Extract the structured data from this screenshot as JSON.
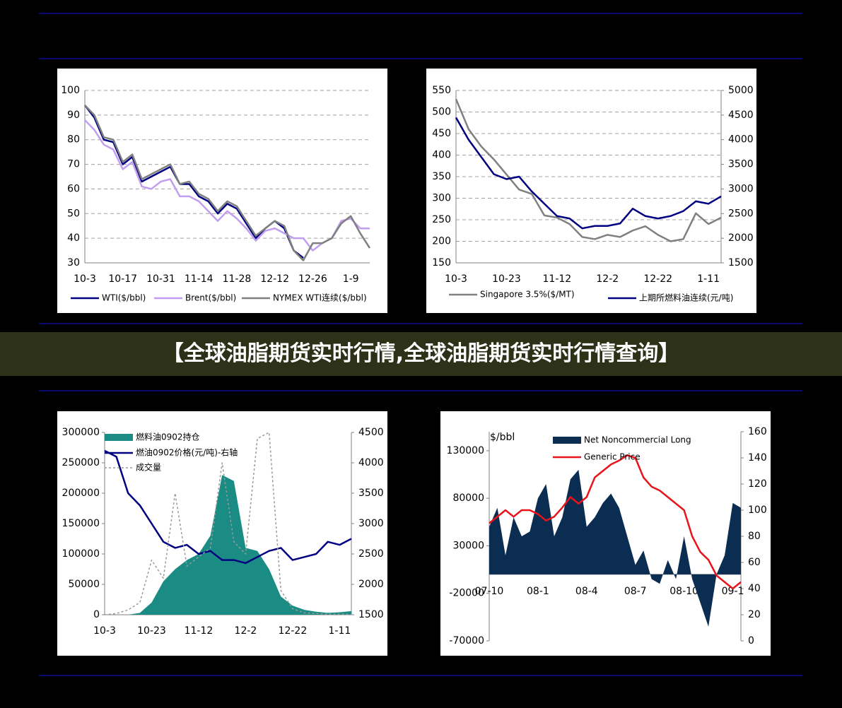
{
  "banner": "【全球油脂期货实时行情,全球油脂期货实时行情查询】",
  "chart_data": [
    {
      "type": "line",
      "legend": "bottom",
      "grid": true,
      "categories": [
        "10-3",
        null,
        null,
        null,
        "10-17",
        null,
        null,
        null,
        "10-31",
        null,
        null,
        null,
        "11-14",
        null,
        null,
        null,
        "11-28",
        null,
        null,
        null,
        "12-12",
        null,
        null,
        null,
        "12-26",
        null,
        null,
        null,
        "1-9",
        null,
        null
      ],
      "ylim": [
        30,
        100
      ],
      "yticks": [
        30,
        40,
        50,
        60,
        70,
        80,
        90,
        100
      ],
      "series": [
        {
          "name": "WTI($/bbl)",
          "color": "#000080",
          "kind": "line",
          "values": [
            94,
            89,
            80,
            79,
            70,
            73,
            63,
            65,
            67,
            69,
            62,
            62,
            57,
            55,
            50,
            54,
            52,
            46,
            40,
            44,
            47,
            44,
            35,
            32,
            null,
            null,
            null,
            null,
            null,
            null,
            null
          ]
        },
        {
          "name": "Brent($/bbl)",
          "color": "#c39ef0",
          "kind": "line",
          "values": [
            88,
            84,
            78,
            76,
            68,
            71,
            61,
            60,
            63,
            64,
            57,
            57,
            55,
            51,
            47,
            51,
            48,
            44,
            39,
            43,
            44,
            42,
            40,
            40,
            35,
            38,
            40,
            47,
            48,
            44,
            44
          ]
        },
        {
          "name": "NYMEX WTI连续($/bbl)",
          "color": "#808080",
          "kind": "line",
          "values": [
            94,
            90,
            81,
            80,
            71,
            74,
            64,
            66,
            68,
            70,
            62,
            63,
            58,
            56,
            51,
            55,
            53,
            47,
            41,
            44,
            47,
            45,
            35,
            31,
            38,
            38,
            40,
            46,
            49,
            42,
            36
          ]
        }
      ]
    },
    {
      "type": "line",
      "legend": "bottom",
      "grid": true,
      "categories": [
        "10-3",
        null,
        null,
        null,
        "10-23",
        null,
        null,
        null,
        "11-12",
        null,
        null,
        null,
        "12-2",
        null,
        null,
        null,
        "12-22",
        null,
        null,
        null,
        "1-11",
        null
      ],
      "ylim": [
        150,
        550
      ],
      "yticks": [
        150,
        200,
        250,
        300,
        350,
        400,
        450,
        500,
        550
      ],
      "y2lim": [
        1500,
        5000
      ],
      "y2ticks": [
        1500,
        2000,
        2500,
        3000,
        3500,
        4000,
        4500,
        5000
      ],
      "series": [
        {
          "name": "Singapore 3.5%($/MT)",
          "color": "#808080",
          "kind": "line",
          "values": [
            530,
            460,
            420,
            390,
            355,
            320,
            310,
            260,
            255,
            240,
            210,
            205,
            215,
            210,
            225,
            235,
            215,
            200,
            205,
            265,
            240,
            255
          ]
        },
        {
          "name": "上期所燃料油连续(元/吨)",
          "color": "#000080",
          "kind": "line",
          "axis": "y2",
          "values": [
            4450,
            4000,
            3650,
            3300,
            3200,
            3250,
            2950,
            2700,
            2450,
            2400,
            2200,
            2250,
            2250,
            2300,
            2600,
            2450,
            2400,
            2450,
            2550,
            2750,
            2700,
            2850
          ]
        }
      ]
    },
    {
      "type": "combo",
      "legend": "upper left",
      "grid": false,
      "categories": [
        "10-3",
        null,
        null,
        null,
        "10-23",
        null,
        null,
        null,
        "11-12",
        null,
        null,
        null,
        "12-2",
        null,
        null,
        null,
        "12-22",
        null,
        null,
        null,
        "1-11",
        null
      ],
      "ylim": [
        0,
        300000
      ],
      "yticks": [
        0,
        50000,
        100000,
        150000,
        200000,
        250000,
        300000
      ],
      "y2lim": [
        1500,
        4500
      ],
      "y2ticks": [
        1500,
        2000,
        2500,
        3000,
        3500,
        4000,
        4500
      ],
      "series": [
        {
          "name": "燃料油0902持仓",
          "color": "#1a8c84",
          "kind": "area",
          "values": [
            0,
            0,
            0,
            3000,
            20000,
            55000,
            75000,
            90000,
            100000,
            130000,
            230000,
            220000,
            110000,
            105000,
            75000,
            30000,
            15000,
            8000,
            5000,
            3000,
            4000,
            6000
          ]
        },
        {
          "name": "燃油0902价格(元/吨)-右轴",
          "color": "#000080",
          "kind": "line",
          "axis": "y2",
          "values": [
            4200,
            4100,
            3500,
            3300,
            3000,
            2700,
            2600,
            2650,
            2500,
            2550,
            2400,
            2400,
            2350,
            2450,
            2550,
            2600,
            2400,
            2450,
            2500,
            2700,
            2650,
            2750
          ]
        },
        {
          "name": "成交量",
          "color": "#999999",
          "kind": "dashed",
          "values": [
            0,
            2000,
            8000,
            20000,
            90000,
            60000,
            200000,
            80000,
            95000,
            110000,
            250000,
            120000,
            100000,
            290000,
            300000,
            40000,
            10000,
            3000,
            2000,
            1000,
            1000,
            500
          ]
        }
      ]
    },
    {
      "type": "combo",
      "legend": "upper center",
      "grid": false,
      "y_label": "$/bbl",
      "categories": [
        "07-10",
        null,
        null,
        null,
        null,
        null,
        "08-1",
        null,
        null,
        null,
        null,
        null,
        "08-4",
        null,
        null,
        null,
        null,
        null,
        "08-7",
        null,
        null,
        null,
        null,
        null,
        "08-10",
        null,
        null,
        null,
        null,
        null,
        "09-1",
        null
      ],
      "ylim": [
        -70000,
        150000
      ],
      "yticks": [
        -70000,
        -20000,
        30000,
        80000,
        130000
      ],
      "y2lim": [
        0,
        160
      ],
      "y2ticks": [
        0,
        20,
        40,
        60,
        80,
        100,
        120,
        140,
        160
      ],
      "series": [
        {
          "name": "Net Noncommercial Long",
          "color": "#0b2d52",
          "kind": "area",
          "values": [
            50000,
            70000,
            20000,
            60000,
            40000,
            45000,
            80000,
            95000,
            40000,
            60000,
            100000,
            110000,
            50000,
            60000,
            75000,
            85000,
            70000,
            40000,
            10000,
            25000,
            -5000,
            -10000,
            15000,
            -5000,
            40000,
            -5000,
            -30000,
            -55000,
            0,
            20000,
            75000,
            70000
          ]
        },
        {
          "name": "Generic Price",
          "color": "#e8141b",
          "kind": "line",
          "axis": "y2",
          "values": [
            90,
            95,
            100,
            95,
            100,
            100,
            97,
            92,
            95,
            102,
            110,
            105,
            110,
            125,
            130,
            135,
            138,
            142,
            140,
            125,
            118,
            115,
            110,
            105,
            100,
            80,
            68,
            62,
            50,
            45,
            40,
            45
          ]
        }
      ]
    }
  ]
}
